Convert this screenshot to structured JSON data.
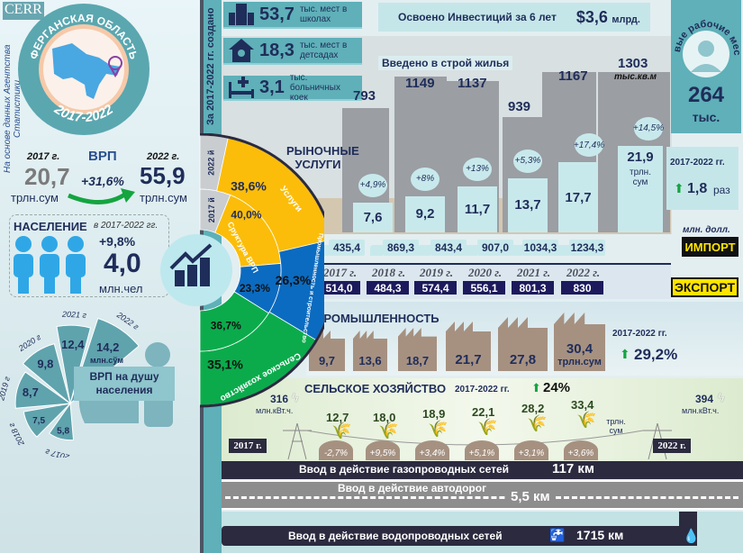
{
  "logo": "CERR",
  "source": "На основе данных Агентства Статистики",
  "region": {
    "title": "ФЕРГАНСКАЯ ОБЛАСТЬ",
    "period": "2017-2022"
  },
  "vrp": {
    "label": "ВРП",
    "year_start": "2017 г.",
    "year_end": "2022 г.",
    "value_start": "20,7",
    "value_end": "55,9",
    "unit": "трлн.сум",
    "growth": "+31,6%"
  },
  "population": {
    "title": "НАСЕЛЕНИЕ",
    "period": "в 2017-2022 гг.",
    "growth": "+9,8%",
    "value": "4,0",
    "unit": "млн.чел"
  },
  "per_capita": {
    "label": "ВРП на душу населения",
    "unit": "млн.сўм",
    "items": [
      {
        "year": "2017 г",
        "value": 5.8,
        "label": "5,8"
      },
      {
        "year": "2018 г",
        "value": 7.5,
        "label": "7,5"
      },
      {
        "year": "2019 г",
        "value": 8.7,
        "label": "8,7"
      },
      {
        "year": "2020 г",
        "value": 9.8,
        "label": "9,8"
      },
      {
        "year": "2021 г",
        "value": 12.4,
        "label": "12,4"
      },
      {
        "year": "2022 г",
        "value": 14.2,
        "label": "14,2"
      }
    ]
  },
  "created_label": "За 2017-2022 гг. создано",
  "created": [
    {
      "value": "53,7",
      "text": "тыс. мест в школах",
      "icon": "school-icon"
    },
    {
      "value": "18,3",
      "text": "тыс. мест в детсадах",
      "icon": "kindergarten-icon"
    },
    {
      "value": "3,1",
      "text": "тыс. больничных коек",
      "icon": "hospital-bed-icon"
    }
  ],
  "investment": {
    "text": "Освоено Инвестиций за 6 лет",
    "value": "$3,6",
    "unit": "млрд."
  },
  "jobs": {
    "title": "Новые рабочие места",
    "value": "264",
    "unit": "тыс."
  },
  "housing": {
    "title": "Введено в строй жилья",
    "unit": "тыс.кв.м",
    "values": [
      "793",
      "1149",
      "1137",
      "939",
      "1167",
      "1303"
    ]
  },
  "structure": {
    "title": "Сруктура ВРП",
    "year_outer": "2022 й",
    "year_inner": "2017 й",
    "sectors": [
      {
        "name": "Услуги",
        "outer": 38.6,
        "inner": 40.0,
        "outer_label": "38,6%",
        "inner_label": "40,0%",
        "color": "#fbbd09"
      },
      {
        "name": "Промышленность и строительство",
        "outer": 26.3,
        "inner": 23.3,
        "outer_label": "26,3%",
        "inner_label": "23,3%",
        "color": "#0b6bc0"
      },
      {
        "name": "Сельское хозяйство",
        "outer": 35.1,
        "inner": 36.7,
        "outer_label": "35,1%",
        "inner_label": "36,7%",
        "color": "#0bab4c"
      }
    ]
  },
  "market": {
    "title": "РЫНОЧНЫЕ УСЛУГИ",
    "values": [
      "7,6",
      "9,2",
      "11,7",
      "13,7",
      "17,7",
      "21,9"
    ],
    "nums": [
      7.6,
      9.2,
      11.7,
      13.7,
      17.7,
      21.9
    ],
    "growth": [
      "+4,9%",
      "+8%",
      "+13%",
      "+5,3%",
      "+17,4%",
      "+14,5%"
    ],
    "unit": "трлн. сум",
    "summary_period": "2017-2022 гг.",
    "summary_value": "1,8",
    "summary_unit": "раз"
  },
  "trade": {
    "unit": "млн. долл.",
    "import_label": "ИМПОРТ",
    "export_label": "ЭКСПОРТ",
    "years": [
      "2017 г.",
      "2018 г.",
      "2019 г.",
      "2020 г.",
      "2021 г.",
      "2022 г."
    ],
    "import": [
      "435,4",
      "869,3",
      "843,4",
      "907,0",
      "1034,3",
      "1234,3"
    ],
    "export": [
      "514,0",
      "484,3",
      "574,4",
      "556,1",
      "801,3",
      "830"
    ]
  },
  "industry": {
    "title": "ПРОМЫШЛЕННОСТЬ",
    "values": [
      "9,7",
      "13,6",
      "18,7",
      "21,7",
      "27,8",
      "30,4"
    ],
    "unit": "трлн.сум",
    "period": "2017-2022 гг.",
    "growth": "29,2%"
  },
  "agriculture": {
    "title": "СЕЛЬСКОЕ ХОЗЯЙСТВО",
    "period": "2017-2022 гг.",
    "growth": "24%",
    "values": [
      "12,7",
      "18,0",
      "18,9",
      "22,1",
      "28,2",
      "33,4"
    ],
    "unit": "трлн. сум",
    "changes": [
      "-2,7%",
      "+9,5%",
      "+3,4%",
      "+5,1%",
      "+3,1%",
      "+3,6%"
    ]
  },
  "energy": {
    "start": "316",
    "end": "394",
    "unit": "млн.кВт.ч.",
    "year_start": "2017 г.",
    "year_end": "2022 г."
  },
  "gas": {
    "text": "Ввод в действие газопроводных сетей",
    "value": "117 км"
  },
  "roads": {
    "text": "Ввод в действие автодорог",
    "value": "5,5 км"
  },
  "water": {
    "text": "Ввод в действие водопроводных сетей",
    "value": "1715 км"
  }
}
